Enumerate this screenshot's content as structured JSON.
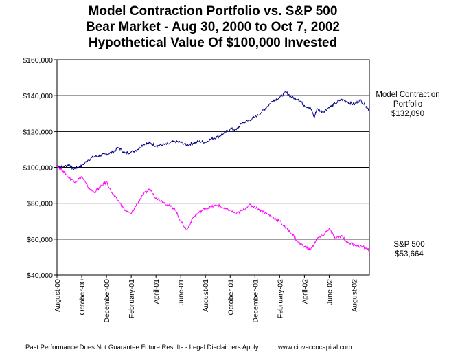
{
  "chart_data": {
    "type": "line",
    "title": [
      "Model Contraction Portfolio vs. S&P 500",
      "Bear Market - Aug 30, 2000 to Oct 7, 2002",
      "Hypothetical Value Of $100,000 Invested"
    ],
    "xlabel": "",
    "ylabel": "",
    "ylim": [
      40000,
      160000
    ],
    "y_ticks": [
      40000,
      60000,
      80000,
      100000,
      120000,
      140000,
      160000
    ],
    "y_tick_labels": [
      "$40,000",
      "$60,000",
      "$80,000",
      "$100,000",
      "$120,000",
      "$140,000",
      "$160,000"
    ],
    "x_tick_labels": [
      "August-00",
      "October-00",
      "December-00",
      "February-01",
      "April-01",
      "June-01",
      "August-01",
      "October-01",
      "December-01",
      "February-02",
      "April-02",
      "June-02",
      "August-02"
    ],
    "x_range_months": [
      0,
      25.25
    ],
    "grid": "horizontal",
    "series": [
      {
        "name": "Model Contraction Portfolio",
        "color": "#000080",
        "x": [
          0,
          0.5,
          1,
          1.3,
          1.7,
          2,
          2.5,
          3,
          3.5,
          4,
          4.5,
          5,
          5.5,
          6,
          6.5,
          7,
          7.5,
          8,
          8.5,
          9,
          9.5,
          10,
          10.5,
          11,
          11.5,
          12,
          12.5,
          13,
          13.5,
          14,
          14.5,
          15,
          15.5,
          16,
          16.5,
          17,
          17.5,
          18,
          18.5,
          19,
          19.5,
          20,
          20.5,
          20.8,
          21,
          21.5,
          22,
          22.5,
          23,
          23.5,
          24,
          24.5,
          25,
          25.25
        ],
        "values": [
          101000,
          100500,
          101500,
          99000,
          100000,
          101000,
          104000,
          106000,
          106500,
          107500,
          108500,
          111000,
          108000,
          108500,
          110000,
          113000,
          113500,
          112000,
          112500,
          113000,
          114500,
          114000,
          112500,
          113500,
          114500,
          114000,
          116000,
          117000,
          119000,
          121500,
          121000,
          125000,
          126000,
          128000,
          130500,
          134000,
          137500,
          139000,
          142000,
          139000,
          138000,
          134500,
          133000,
          128000,
          132500,
          131000,
          133500,
          135500,
          138000,
          136500,
          135000,
          137500,
          134000,
          132090
        ]
      },
      {
        "name": "S&P 500",
        "color": "#ff00ff",
        "x": [
          0,
          0.5,
          1,
          1.5,
          2,
          2.5,
          3,
          3.5,
          4,
          4.5,
          5,
          5.5,
          6,
          6.5,
          7,
          7.5,
          8,
          8.5,
          9,
          9.5,
          10,
          10.5,
          11,
          11.5,
          12,
          12.5,
          13,
          13.5,
          14,
          14.5,
          15,
          15.5,
          16,
          16.5,
          17,
          17.5,
          18,
          18.5,
          19,
          19.5,
          20,
          20.5,
          21,
          21.5,
          22,
          22.5,
          23,
          23.5,
          24,
          24.5,
          25,
          25.25
        ],
        "values": [
          101000,
          98000,
          94000,
          92000,
          95000,
          89000,
          86000,
          89000,
          92000,
          85000,
          81000,
          76000,
          74000,
          80000,
          85000,
          88000,
          83000,
          81000,
          79000,
          77000,
          70000,
          65000,
          72000,
          75000,
          77000,
          78000,
          79000,
          77000,
          76000,
          74000,
          76000,
          79000,
          78000,
          76000,
          74000,
          72000,
          70000,
          66000,
          63000,
          58000,
          56000,
          54000,
          60000,
          62000,
          66000,
          60000,
          62000,
          58000,
          57000,
          56000,
          55000,
          53664
        ]
      }
    ],
    "annotations": [
      {
        "lines": [
          "Model Contraction",
          "Portfolio",
          "$132,090"
        ]
      },
      {
        "lines": [
          "S&P 500",
          "$53,664"
        ]
      }
    ]
  },
  "footer": {
    "disclaimer": "Past Performance Does Not Guarantee Future Results - Legal Disclaimers Apply",
    "website": "www.ciovaccocapital.com"
  }
}
